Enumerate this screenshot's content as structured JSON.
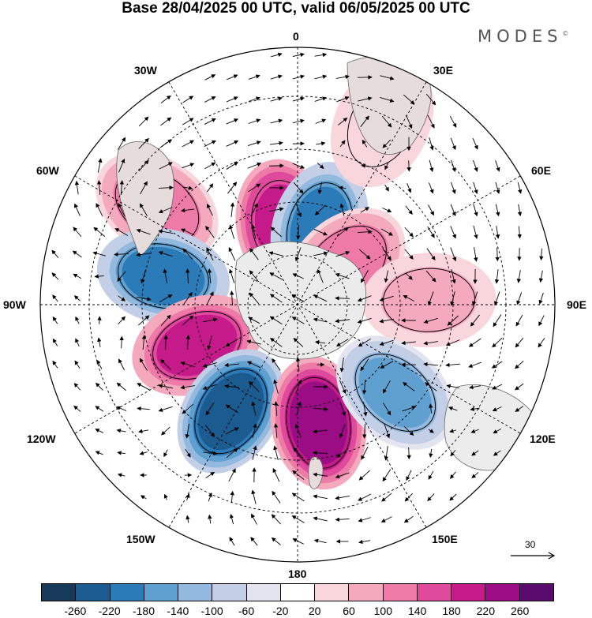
{
  "title": "Base 28/04/2025 00 UTC, valid 06/05/2025 00 UTC",
  "brand": "MODES",
  "brand_mark": "©",
  "longitude_labels": {
    "top": "0",
    "top_left": "30W",
    "top_right": "30E",
    "upper_left": "60W",
    "upper_right": "60E",
    "left": "90W",
    "right": "90E",
    "lower_left": "120W",
    "lower_right": "120E",
    "bottom_left": "150W",
    "bottom_right": "150E",
    "bottom": "180"
  },
  "reference_vector": {
    "label": "30"
  },
  "colorbar": {
    "colors": [
      "#183a5a",
      "#1b5b8f",
      "#2b7bb9",
      "#5fa0d0",
      "#93b9de",
      "#c2cfe6",
      "#e4e4f1",
      "#ffffff",
      "#f9d6dc",
      "#f4a9bd",
      "#ee7aa8",
      "#e04a9c",
      "#c51b8a",
      "#9a0d85",
      "#5b0b6e"
    ],
    "tick_labels": [
      "-260",
      "-220",
      "-180",
      "-140",
      "-100",
      "-60",
      "-20",
      "20",
      "60",
      "100",
      "140",
      "180",
      "220",
      "260"
    ]
  },
  "anomaly_centers": [
    {
      "name": "60W-positive",
      "value": 120,
      "lon": -55,
      "colat": 60
    },
    {
      "name": "lon15W-positive",
      "value": 210,
      "lon": -10,
      "colat": 28
    },
    {
      "name": "lon15E-negative",
      "value": -190,
      "lon": 16,
      "colat": 28
    },
    {
      "name": "lon45E-positive",
      "value": 130,
      "lon": 50,
      "colat": 22
    },
    {
      "name": "30E-positive",
      "value": 60,
      "lon": 25,
      "colat": 70
    },
    {
      "name": "90E-positive",
      "value": 80,
      "lon": 88,
      "colat": 46
    },
    {
      "name": "75W-negative",
      "value": -190,
      "lon": -78,
      "colat": 48
    },
    {
      "name": "110W-positive",
      "value": 190,
      "lon": -112,
      "colat": 38
    },
    {
      "name": "150W-negative",
      "value": -250,
      "lon": -148,
      "colat": 44
    },
    {
      "name": "175E-positive",
      "value": 250,
      "lon": 170,
      "colat": 42
    },
    {
      "name": "130E-negative",
      "value": -140,
      "lon": 132,
      "colat": 46
    }
  ]
}
